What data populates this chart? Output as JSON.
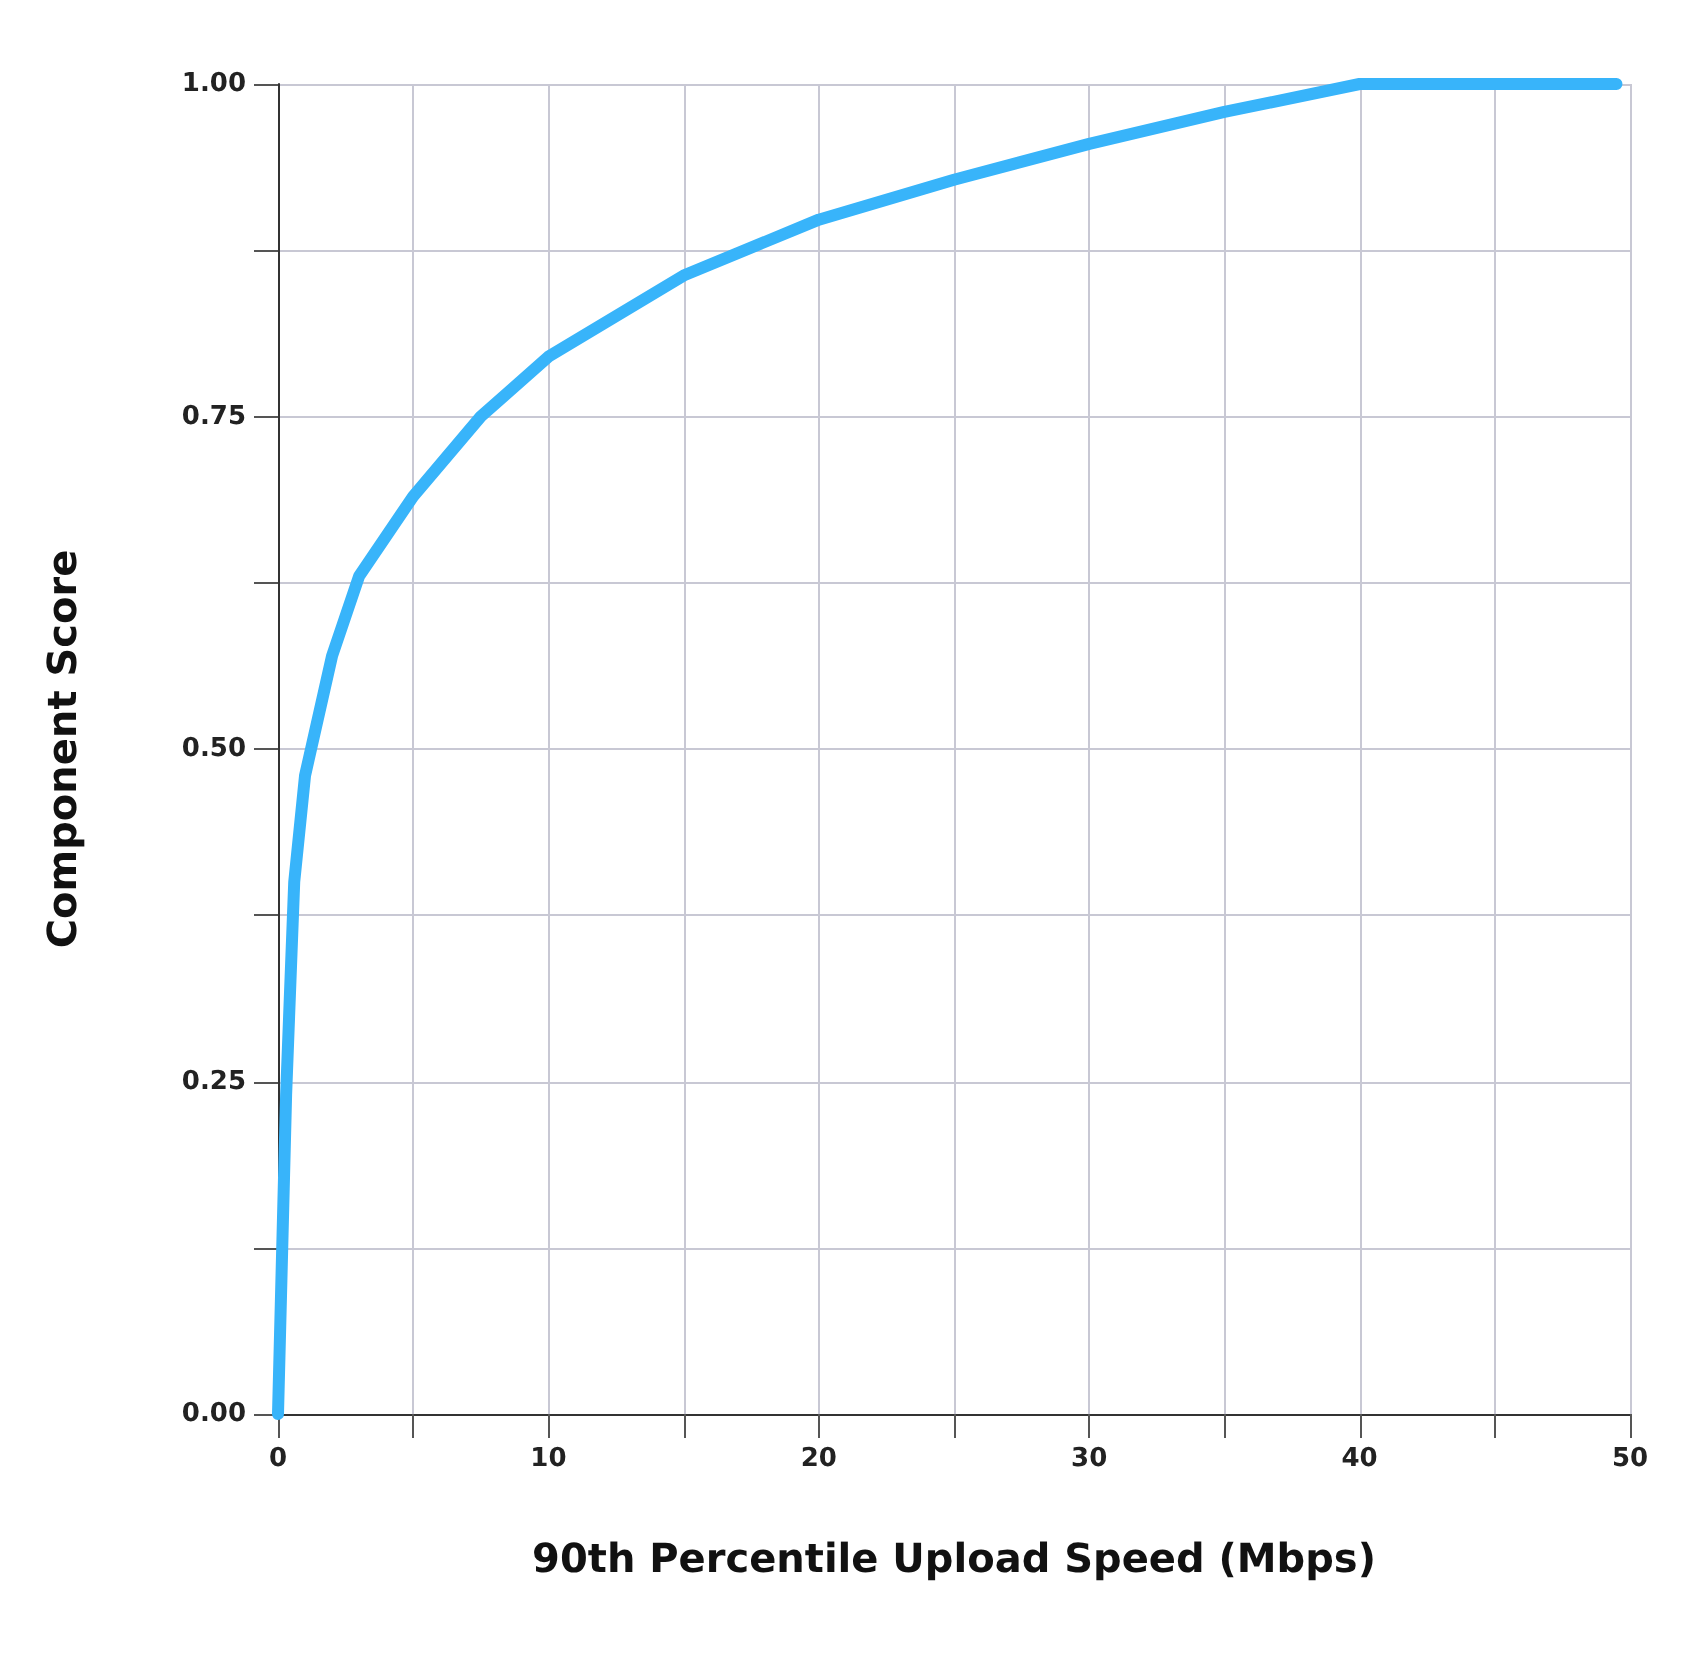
{
  "chart_data": {
    "type": "line",
    "xlabel": "90th Percentile Upload Speed (Mbps)",
    "ylabel": "Component Score",
    "x": [
      0,
      0.3,
      0.6,
      1,
      2,
      3,
      5,
      7.5,
      10,
      15,
      20,
      25,
      30,
      35,
      40,
      49.5
    ],
    "series": [
      {
        "color": "#38b4fa",
        "values": [
          0,
          0.24,
          0.4,
          0.48,
          0.57,
          0.63,
          0.69,
          0.75,
          0.795,
          0.856,
          0.898,
          0.928,
          0.955,
          0.979,
          1.0,
          1.0
        ]
      }
    ],
    "xlim": [
      0,
      50
    ],
    "ylim": [
      0,
      1
    ],
    "xticks": [
      0,
      {
        "value": 5,
        "label": null
      },
      10,
      {
        "value": 15,
        "label": null
      },
      20,
      {
        "value": 25,
        "label": null
      },
      30,
      {
        "value": 35,
        "label": null
      },
      40,
      {
        "value": 45,
        "label": null
      },
      50
    ],
    "yticks": [
      {
        "value": 0,
        "label": "0.00"
      },
      {
        "value": 0.125,
        "label": null
      },
      {
        "value": 0.25,
        "label": "0.25"
      },
      {
        "value": 0.375,
        "label": null
      },
      {
        "value": 0.5,
        "label": "0.50"
      },
      {
        "value": 0.625,
        "label": null
      },
      {
        "value": 0.75,
        "label": "0.75"
      },
      {
        "value": 0.875,
        "label": null
      },
      {
        "value": 1,
        "label": "1.00"
      }
    ],
    "grid": true,
    "marker": "none",
    "line_style": "solid"
  }
}
